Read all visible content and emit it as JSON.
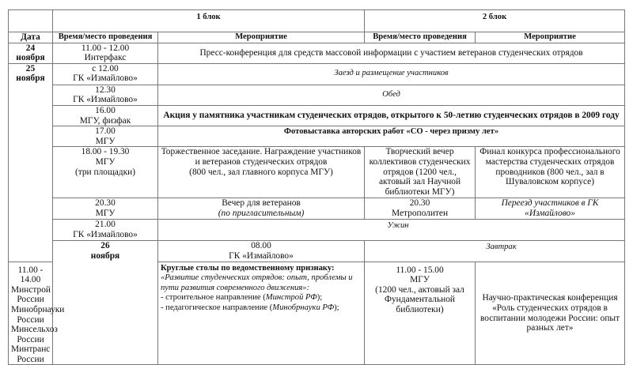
{
  "header": {
    "block1": "1 блок",
    "block2": "2 блок",
    "date": "Дата",
    "time_place_1": "Время/место проведения",
    "event_1": "Мероприятие",
    "time_place_2": "Время/место проведения",
    "event_2": "Мероприятие"
  },
  "days": {
    "d24": {
      "num": "24",
      "month": "ноября"
    },
    "d25": {
      "num": "25",
      "month": "ноября"
    },
    "d26": {
      "num": "26",
      "month": "ноября"
    }
  },
  "rows": {
    "r1": {
      "time": "11.00 - 12.00",
      "place": "Интерфакс",
      "event": "Пресс-конференция для средств массовой информации с участием ветеранов студенческих отрядов"
    },
    "r2": {
      "time": "с 12.00",
      "place": "ГК «Измайлово»",
      "event": "Заезд и размещение участников"
    },
    "r3": {
      "time": "12.30",
      "place": "ГК «Измайлово»",
      "event": "Обед"
    },
    "r4": {
      "time": "16.00",
      "place": "МГУ, физфак",
      "event": "Акция у памятника участникам студенческих отрядов, открытого к 50-летию студенческих отрядов в 2009 году"
    },
    "r5": {
      "time": "17.00",
      "place": "МГУ",
      "event": "Фотовыставка авторских работ «СО - через призму лет»"
    },
    "r6": {
      "time": "18.00 - 19.30",
      "place": "МГУ",
      "note": "(три площадки)",
      "event1_l1": "Торжественное заседание. Награждение участников",
      "event1_l2": "и ветеранов студенческих отрядов",
      "event1_l3": "(800 чел., зал главного корпуса МГУ)",
      "event2": "Творческий вечер коллективов студенческих отрядов (1200 чел., актовый зал Научной библиотеки МГУ)",
      "event3": "Финал конкурса профессионального мастерства студенческих отрядов проводников (800 чел., зал  в Шуваловском корпусе)"
    },
    "r7": {
      "time": "20.30",
      "place": "МГУ",
      "event1": "Вечер для ветеранов",
      "event1_note": "(по пригласительным)",
      "time2": "20.30",
      "place2": "Метрополитен",
      "event2": "Переезд участников в ГК «Измайлово»"
    },
    "r8": {
      "time": "21.00",
      "place": "ГК «Измайлово»",
      "event": "Ужин"
    },
    "r9": {
      "time": "08.00",
      "place": "ГК «Измайлово»",
      "event": "Завтрак"
    },
    "r10": {
      "time": "11.00 - 14.00",
      "places": [
        "Минстрой России",
        "Минобрнауки России",
        "Минсельхоз России",
        "Минтранс России"
      ],
      "title": "Круглые столы по ведомственному признаку:",
      "subtitle": "«Развитие студенческих отрядов: опыт, проблемы и пути развития современного движения»:",
      "item1": "- строительное направление  (",
      "item1_org": "Минстрой РФ",
      "item1_end": ");",
      "item2": "- педагогическое направление (",
      "item2_org": "Минобрнауки РФ",
      "item2_end": ");",
      "time2": "11.00 - 15.00",
      "place2": "МГУ",
      "place2_note": "(1200 чел., актовый зал Фундаментальной библиотеки)",
      "event2": "Научно-практическая конференция «Роль студенческих отрядов в воспитании молодежи России: опыт разных лет»"
    }
  }
}
